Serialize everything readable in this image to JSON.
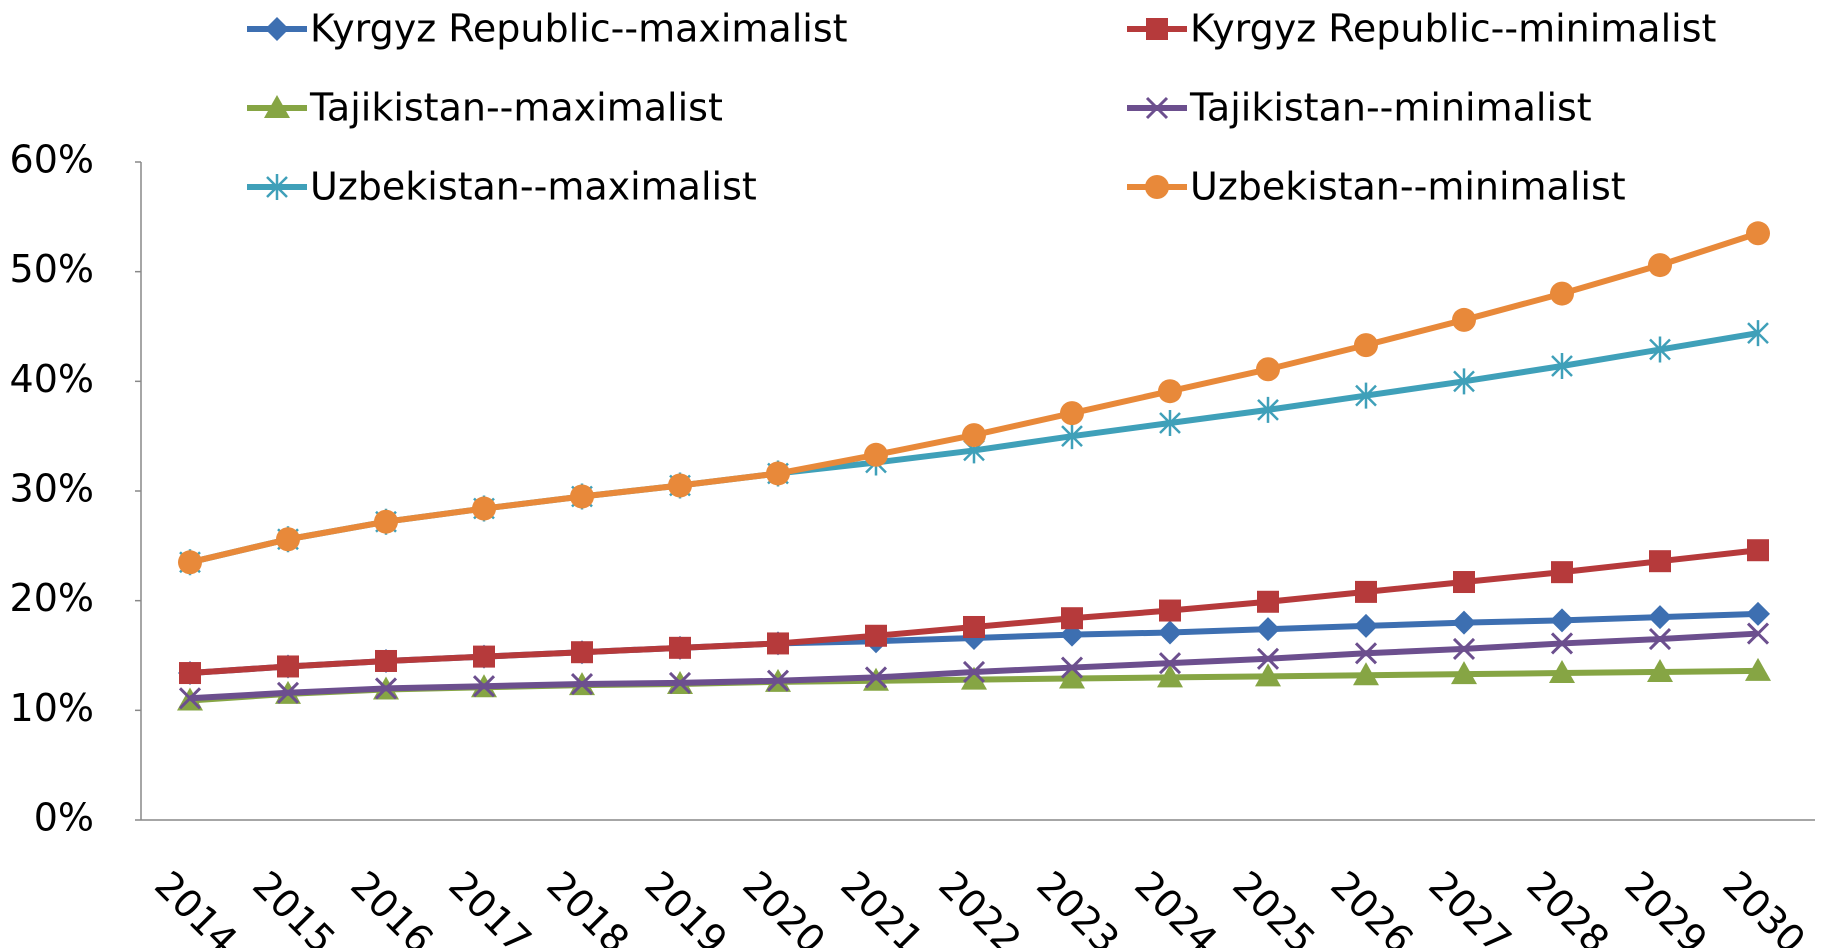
{
  "chart_data": {
    "type": "line",
    "categories": [
      "2014",
      "2015",
      "2016",
      "2017",
      "2018",
      "2019",
      "2020",
      "2021",
      "2022",
      "2023",
      "2024",
      "2025",
      "2026",
      "2027",
      "2028",
      "2029",
      "2030"
    ],
    "ylim": [
      0,
      60
    ],
    "yticks": [
      {
        "value": 0,
        "label": "0%"
      },
      {
        "value": 10,
        "label": "10%"
      },
      {
        "value": 20,
        "label": "20%"
      },
      {
        "value": 30,
        "label": "30%"
      },
      {
        "value": 40,
        "label": "40%"
      },
      {
        "value": 50,
        "label": "50%"
      },
      {
        "value": 60,
        "label": "60%"
      }
    ],
    "grid": false,
    "legend": "top",
    "series": [
      {
        "name": "Kyrgyz Republic--maximalist",
        "color": "#3d6fb1",
        "marker": "diamond",
        "values": [
          13.4,
          14.0,
          14.5,
          14.9,
          15.3,
          15.7,
          16.1,
          16.3,
          16.6,
          16.9,
          17.1,
          17.4,
          17.7,
          18.0,
          18.2,
          18.5,
          18.8
        ]
      },
      {
        "name": "Kyrgyz Republic--minimalist",
        "color": "#b63a3b",
        "marker": "square",
        "values": [
          13.4,
          14.0,
          14.5,
          14.9,
          15.3,
          15.7,
          16.1,
          16.8,
          17.6,
          18.4,
          19.1,
          19.9,
          20.8,
          21.7,
          22.6,
          23.6,
          24.6
        ]
      },
      {
        "name": "Tajikistan--maximalist",
        "color": "#86a544",
        "marker": "triangle",
        "values": [
          10.9,
          11.5,
          11.9,
          12.1,
          12.3,
          12.4,
          12.6,
          12.7,
          12.8,
          12.9,
          13.0,
          13.1,
          13.2,
          13.3,
          13.4,
          13.5,
          13.6
        ]
      },
      {
        "name": "Tajikistan--minimalist",
        "color": "#6c4f8e",
        "marker": "x",
        "values": [
          11.1,
          11.6,
          12.0,
          12.2,
          12.4,
          12.5,
          12.7,
          13.0,
          13.5,
          13.9,
          14.3,
          14.7,
          15.2,
          15.6,
          16.1,
          16.5,
          17.0
        ]
      },
      {
        "name": "Uzbekistan--maximalist",
        "color": "#3fa0b9",
        "marker": "star",
        "values": [
          23.5,
          25.6,
          27.2,
          28.4,
          29.5,
          30.5,
          31.6,
          32.6,
          33.7,
          35.0,
          36.2,
          37.4,
          38.7,
          40.0,
          41.4,
          42.9,
          44.4
        ]
      },
      {
        "name": "Uzbekistan--minimalist",
        "color": "#e8893a",
        "marker": "circle",
        "values": [
          23.5,
          25.6,
          27.2,
          28.4,
          29.5,
          30.5,
          31.6,
          33.3,
          35.1,
          37.1,
          39.1,
          41.1,
          43.3,
          45.6,
          48.0,
          50.6,
          53.5
        ]
      }
    ]
  }
}
